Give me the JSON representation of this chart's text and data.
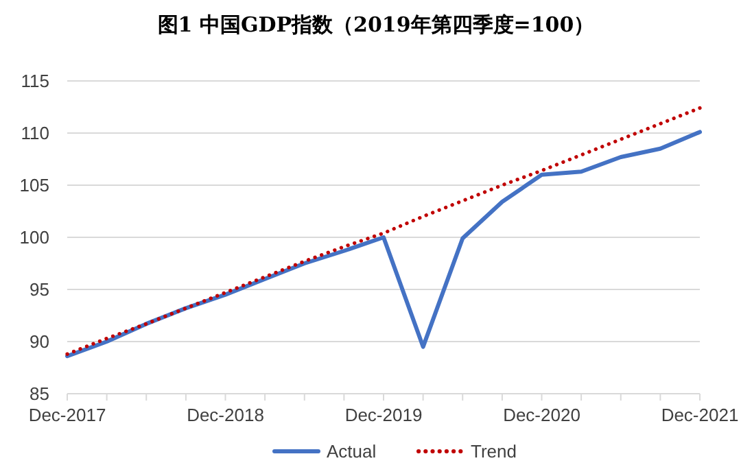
{
  "chart_data": {
    "type": "line",
    "title": "图1 中国GDP指数（2019年第四季度=100）",
    "categories": [
      "Dec-2017",
      null,
      null,
      null,
      "Dec-2018",
      null,
      null,
      null,
      "Dec-2019",
      null,
      null,
      null,
      "Dec-2020",
      null,
      null,
      null,
      "Dec-2021"
    ],
    "series": [
      {
        "name": "Actual",
        "color": "#4472c4",
        "line_style": "solid",
        "values": [
          88.6,
          90.0,
          91.7,
          93.2,
          94.5,
          96.0,
          97.5,
          98.7,
          100.0,
          89.5,
          99.9,
          103.4,
          106.0,
          106.3,
          107.7,
          108.5,
          110.1
        ]
      },
      {
        "name": "Trend",
        "color": "#c00000",
        "line_style": "dotted",
        "values": [
          88.8,
          90.3,
          91.7,
          93.2,
          94.7,
          96.2,
          97.7,
          99.1,
          100.4,
          102.0,
          103.5,
          105.0,
          106.4,
          107.9,
          109.4,
          110.9,
          112.4
        ]
      }
    ],
    "ylim": [
      85,
      115
    ],
    "yticks": [
      85,
      90,
      95,
      100,
      105,
      110,
      115
    ],
    "grid": "y",
    "legend": "bottom"
  }
}
